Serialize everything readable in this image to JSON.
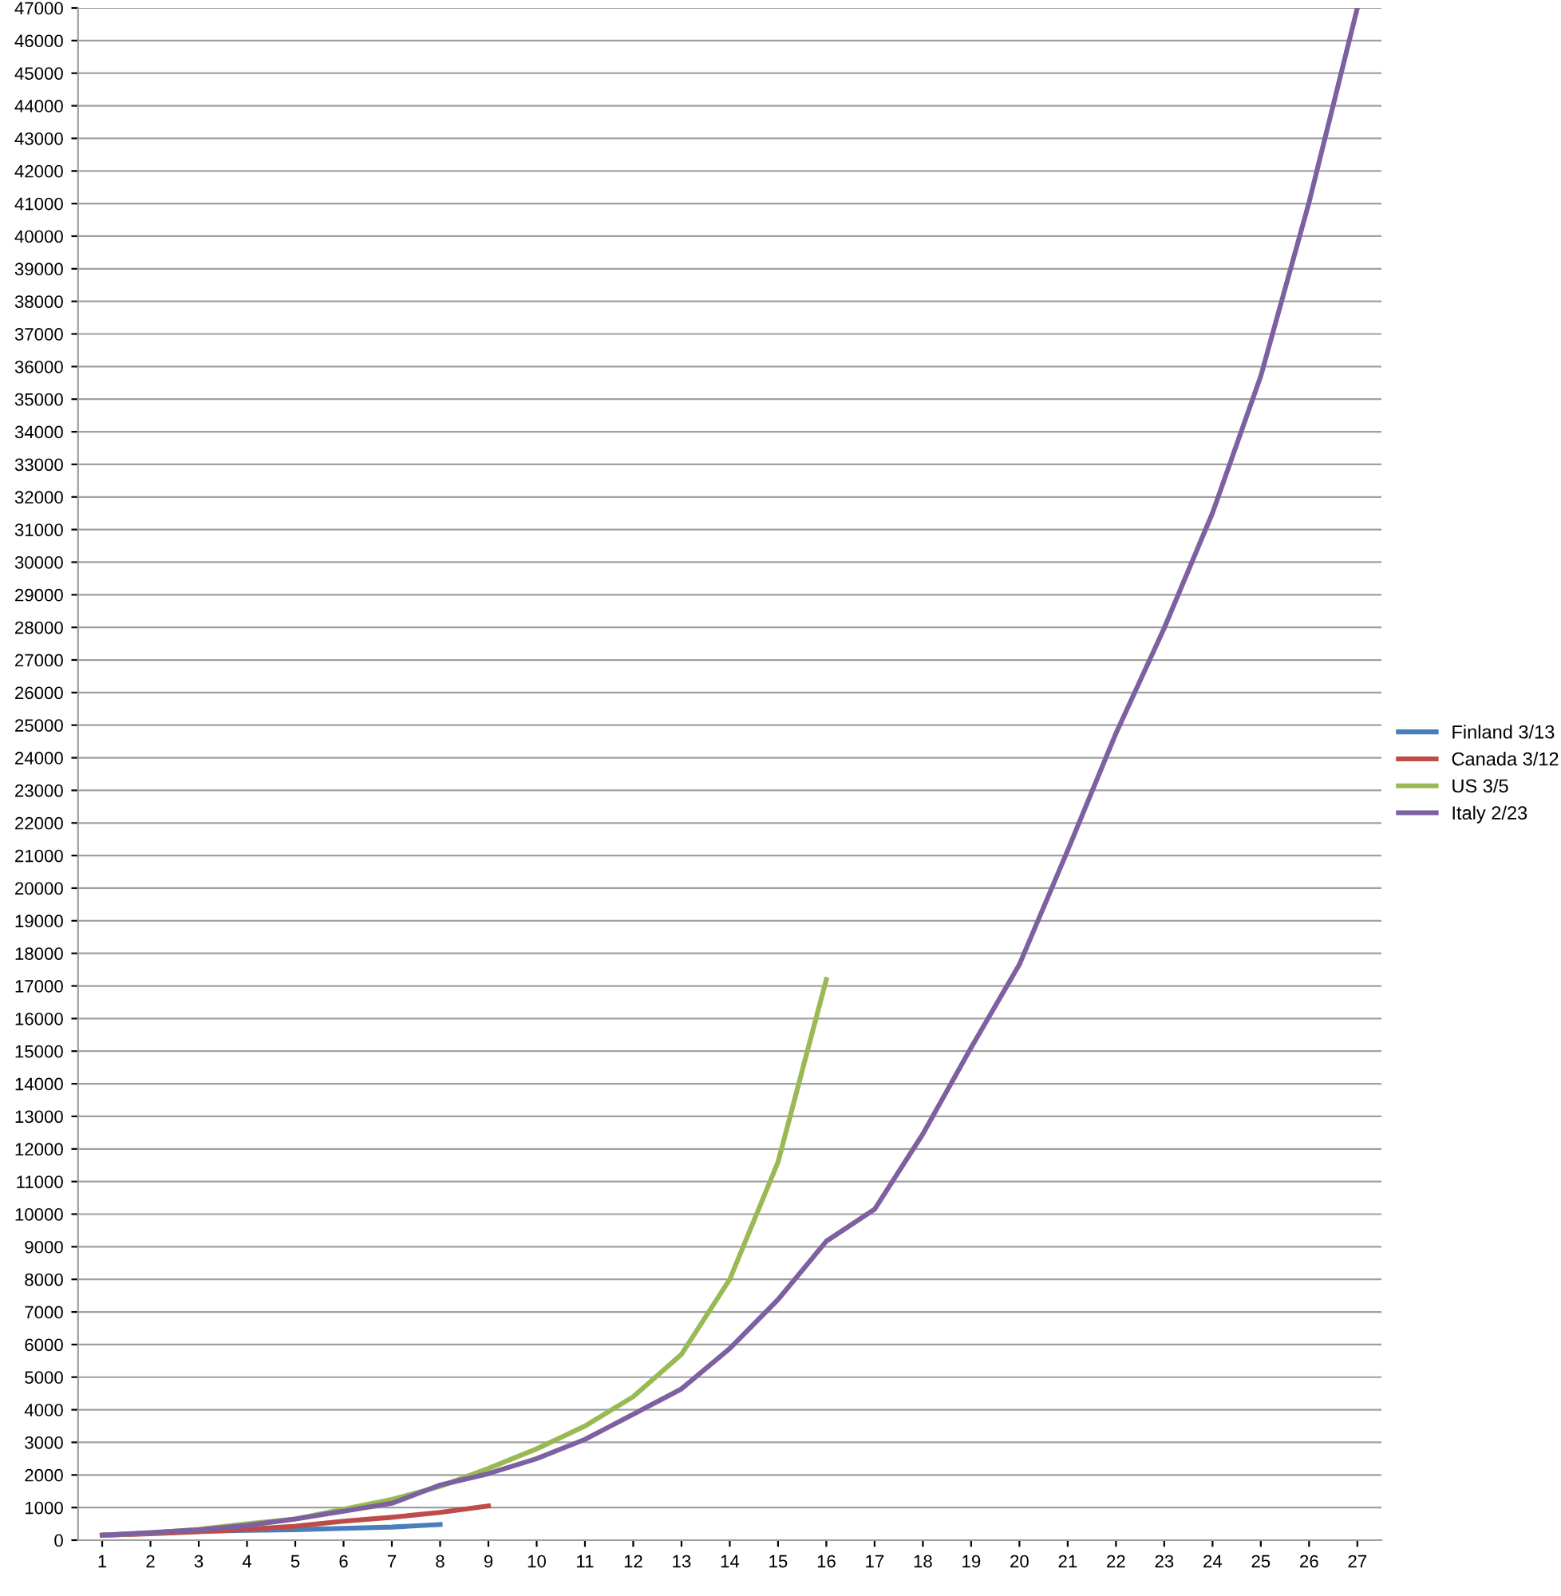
{
  "chart_data": {
    "type": "line",
    "categories": [
      "1",
      "2",
      "3",
      "4",
      "5",
      "6",
      "7",
      "8",
      "9",
      "10",
      "11",
      "12",
      "13",
      "14",
      "15",
      "16",
      "17",
      "18",
      "19",
      "20",
      "21",
      "22",
      "23",
      "24",
      "25",
      "26",
      "27"
    ],
    "series": [
      {
        "name": "Finland 3/13",
        "color": "#4a7ebb",
        "values": [
          150,
          210,
          270,
          300,
          320,
          360,
          400,
          480,
          null,
          null,
          null,
          null,
          null,
          null,
          null,
          null,
          null,
          null,
          null,
          null,
          null,
          null,
          null,
          null,
          null,
          null,
          null
        ]
      },
      {
        "name": "Canada 3/12",
        "color": "#be4b48",
        "values": [
          150,
          200,
          260,
          330,
          430,
          580,
          700,
          850,
          1050,
          null,
          null,
          null,
          null,
          null,
          null,
          null,
          null,
          null,
          null,
          null,
          null,
          null,
          null,
          null,
          null,
          null,
          null
        ]
      },
      {
        "name": "US 3/5",
        "color": "#98b954",
        "values": [
          150,
          220,
          330,
          500,
          650,
          950,
          1250,
          1650,
          2200,
          2800,
          3500,
          4400,
          5700,
          8000,
          11600,
          17200,
          null,
          null,
          null,
          null,
          null,
          null,
          null,
          null,
          null,
          null,
          null
        ]
      },
      {
        "name": "Italy 2/23",
        "color": "#7d60a0",
        "values": [
          150,
          230,
          320,
          450,
          650,
          890,
          1130,
          1690,
          2040,
          2500,
          3090,
          3860,
          4640,
          5880,
          7380,
          9170,
          10150,
          12460,
          15110,
          17660,
          21160,
          24750,
          27980,
          31510,
          35710,
          41040,
          47000
        ]
      }
    ],
    "ylim": [
      0,
      47000
    ],
    "yticks": [
      0,
      1000,
      2000,
      3000,
      4000,
      5000,
      6000,
      7000,
      8000,
      9000,
      10000,
      11000,
      12000,
      13000,
      14000,
      15000,
      16000,
      17000,
      18000,
      19000,
      20000,
      21000,
      22000,
      23000,
      24000,
      25000,
      26000,
      27000,
      28000,
      29000,
      30000,
      31000,
      32000,
      33000,
      34000,
      35000,
      36000,
      37000,
      38000,
      39000,
      40000,
      41000,
      42000,
      43000,
      44000,
      45000,
      46000,
      47000
    ],
    "grid": "y",
    "legend": "right",
    "marker": "none",
    "line_style": "solid"
  }
}
